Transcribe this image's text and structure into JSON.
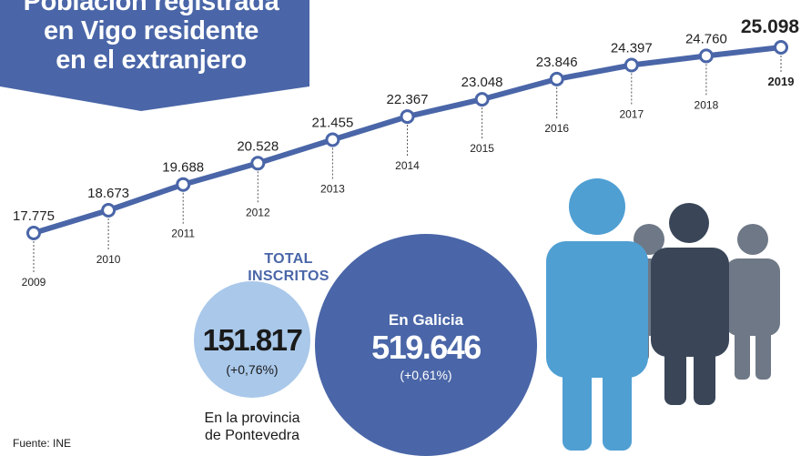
{
  "title": {
    "lines": [
      "Población registrada",
      "en Vigo residente",
      "en el extranjero"
    ]
  },
  "colors": {
    "banner": "#4a66a8",
    "line": "#4a66a8",
    "province_circle": "#a9c8ea",
    "galicia_circle": "#4a66a8",
    "figure_front": "#4f9fd3",
    "figure_mid": "#3a4658",
    "figure_back": "#6e7886"
  },
  "chart_data": {
    "type": "line",
    "x": [
      2009,
      2010,
      2011,
      2012,
      2013,
      2014,
      2015,
      2016,
      2017,
      2018,
      2019
    ],
    "value_labels": [
      "17.775",
      "18.673",
      "19.688",
      "20.528",
      "21.455",
      "22.367",
      "23.048",
      "23.846",
      "24.397",
      "24.760",
      "25.098"
    ],
    "year_labels": [
      "2009",
      "2010",
      "2011",
      "2012",
      "2013",
      "2014",
      "2015",
      "2016",
      "2017",
      "2018",
      "2019"
    ],
    "series": [
      {
        "values": [
          17775,
          18673,
          19688,
          20528,
          21455,
          22367,
          23048,
          23846,
          24397,
          24760,
          25098
        ]
      }
    ],
    "ylim": [
      17000,
      25500
    ],
    "grid": false,
    "legend": "none"
  },
  "totals": {
    "heading_lines": [
      "TOTAL",
      "INSCRITOS"
    ],
    "province": {
      "value": "151.817",
      "change": "(+0,76%)",
      "label_lines": [
        "En la provincia",
        "de Pontevedra"
      ]
    },
    "galicia": {
      "label": "En Galicia",
      "value": "519.646",
      "change": "(+0,61%)"
    }
  },
  "icons": [
    "people-group-icon"
  ],
  "source": "Fuente: INE"
}
